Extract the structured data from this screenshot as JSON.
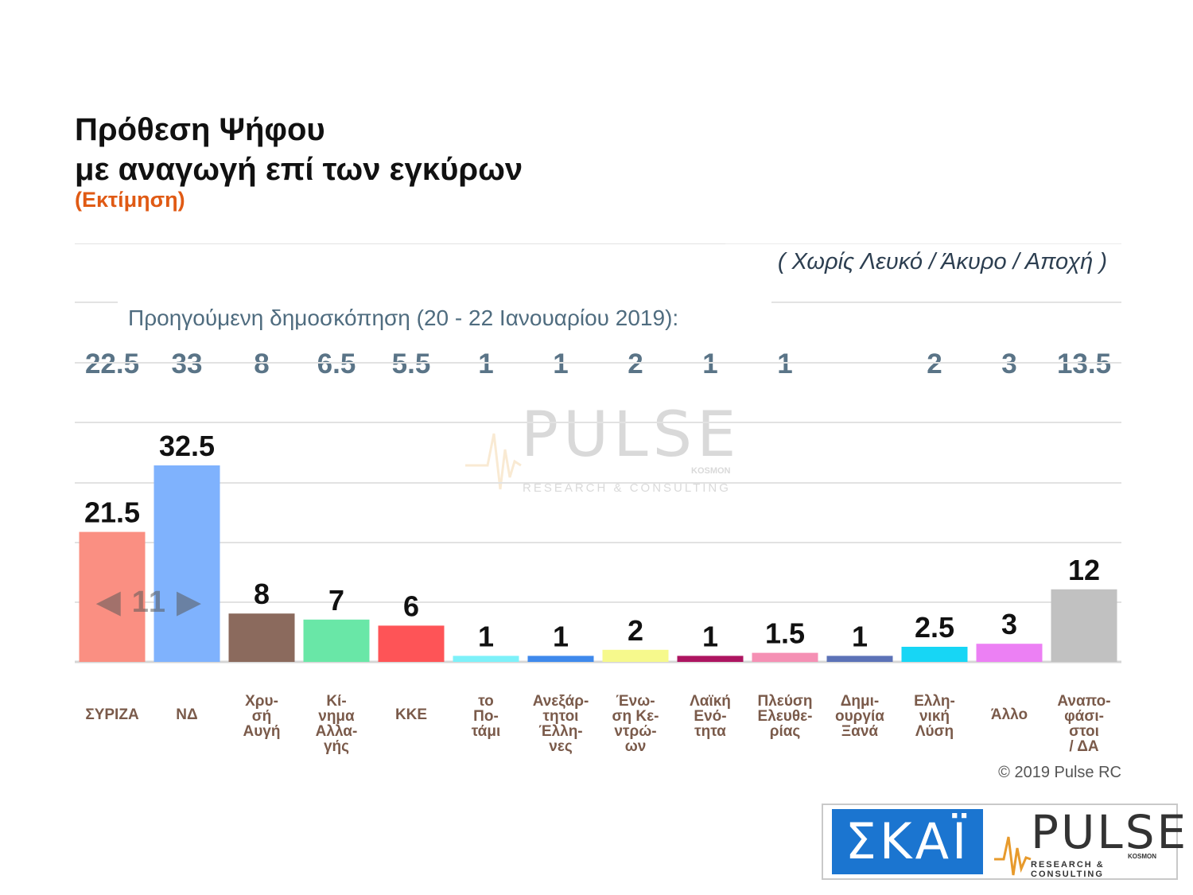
{
  "header": {
    "title_line1": "Πρόθεση Ψήφου",
    "title_line2": "με αναγωγή επί των εγκύρων",
    "subtitle": "(Εκτίμηση)",
    "note": "( Χωρίς Λευκό / Άκυρο / Αποχή )"
  },
  "previous": {
    "label": "Προηγούμενη δημοσκόπηση (20 - 22 Ιανουαρίου 2019):",
    "values": [
      "22.5",
      "33",
      "8",
      "6.5",
      "5.5",
      "1",
      "1",
      "2",
      "1",
      "1",
      "",
      "2",
      "3",
      "13.5"
    ]
  },
  "nav": {
    "prev": "◀",
    "page": "11",
    "next": "▶"
  },
  "watermark": {
    "word": "PULSE",
    "tag": "KOSMON",
    "line": "RESEARCH & CONSULTING"
  },
  "chart_data": {
    "type": "bar",
    "title": "Πρόθεση Ψήφου με αναγωγή επί των εγκύρων",
    "categories": [
      "ΣΥΡΙΖΑ",
      "ΝΔ",
      "Χρυ-σή Αυγή",
      "Κί-νημα Αλλα-γής",
      "ΚΚΕ",
      "το Πο-τάμι",
      "Ανεξάρ-τητοι Έλλη-νες",
      "Ένω-ση Κε-ντρώ-ων",
      "Λαϊκή Ενό-τητα",
      "Πλεύση Ελευθε-ρίας",
      "Δημι-ουργία Ξανά",
      "Ελλη-νική Λύση",
      "Άλλο",
      "Αναπο-φάσι-στοι / ΔΑ"
    ],
    "category_lines": [
      [
        "ΣΥΡΙΖΑ"
      ],
      [
        "ΝΔ"
      ],
      [
        "Χρυ-",
        "σή",
        "Αυγή"
      ],
      [
        "Κί-",
        "νημα",
        "Αλλα-",
        "γής"
      ],
      [
        "ΚΚΕ"
      ],
      [
        "το",
        "Πο-",
        "τάμι"
      ],
      [
        "Ανεξάρ-",
        "τητοι",
        "Έλλη-",
        "νες"
      ],
      [
        "Ένω-",
        "ση Κε-",
        "ντρώ-",
        "ων"
      ],
      [
        "Λαϊκή",
        "Ενό-",
        "τητα"
      ],
      [
        "Πλεύση",
        "Ελευθε-",
        "ρίας"
      ],
      [
        "Δημι-",
        "ουργία",
        "Ξανά"
      ],
      [
        "Ελλη-",
        "νική",
        "Λύση"
      ],
      [
        "Άλλο"
      ],
      [
        "Αναπο-",
        "φάσι-",
        "στοι",
        "/ ΔΑ"
      ]
    ],
    "values": [
      21.5,
      32.5,
      8,
      7,
      6,
      1,
      1,
      2,
      1,
      1.5,
      1,
      2.5,
      3,
      12
    ],
    "value_labels": [
      "21.5",
      "32.5",
      "8",
      "7",
      "6",
      "1",
      "1",
      "2",
      "1",
      "1.5",
      "1",
      "2.5",
      "3",
      "12"
    ],
    "colors": [
      "#fa8f82",
      "#7fb2fd",
      "#8b6a5d",
      "#69e7a7",
      "#fe5457",
      "#7df1f9",
      "#3f89ec",
      "#f6f98c",
      "#ad1460",
      "#f590b4",
      "#5c72b7",
      "#17d6f5",
      "#ec80f4",
      "#c1c1c1"
    ],
    "ylim": [
      0,
      40
    ],
    "grid": true,
    "xlabel": "",
    "ylabel": ""
  },
  "copyright": "© 2019 Pulse RC",
  "logos": {
    "skai": "ΣΚΑΪ",
    "pulse": "PULSE",
    "pulse_tag": "KOSMON",
    "pulse_sub": "RESEARCH & CONSULTING"
  }
}
